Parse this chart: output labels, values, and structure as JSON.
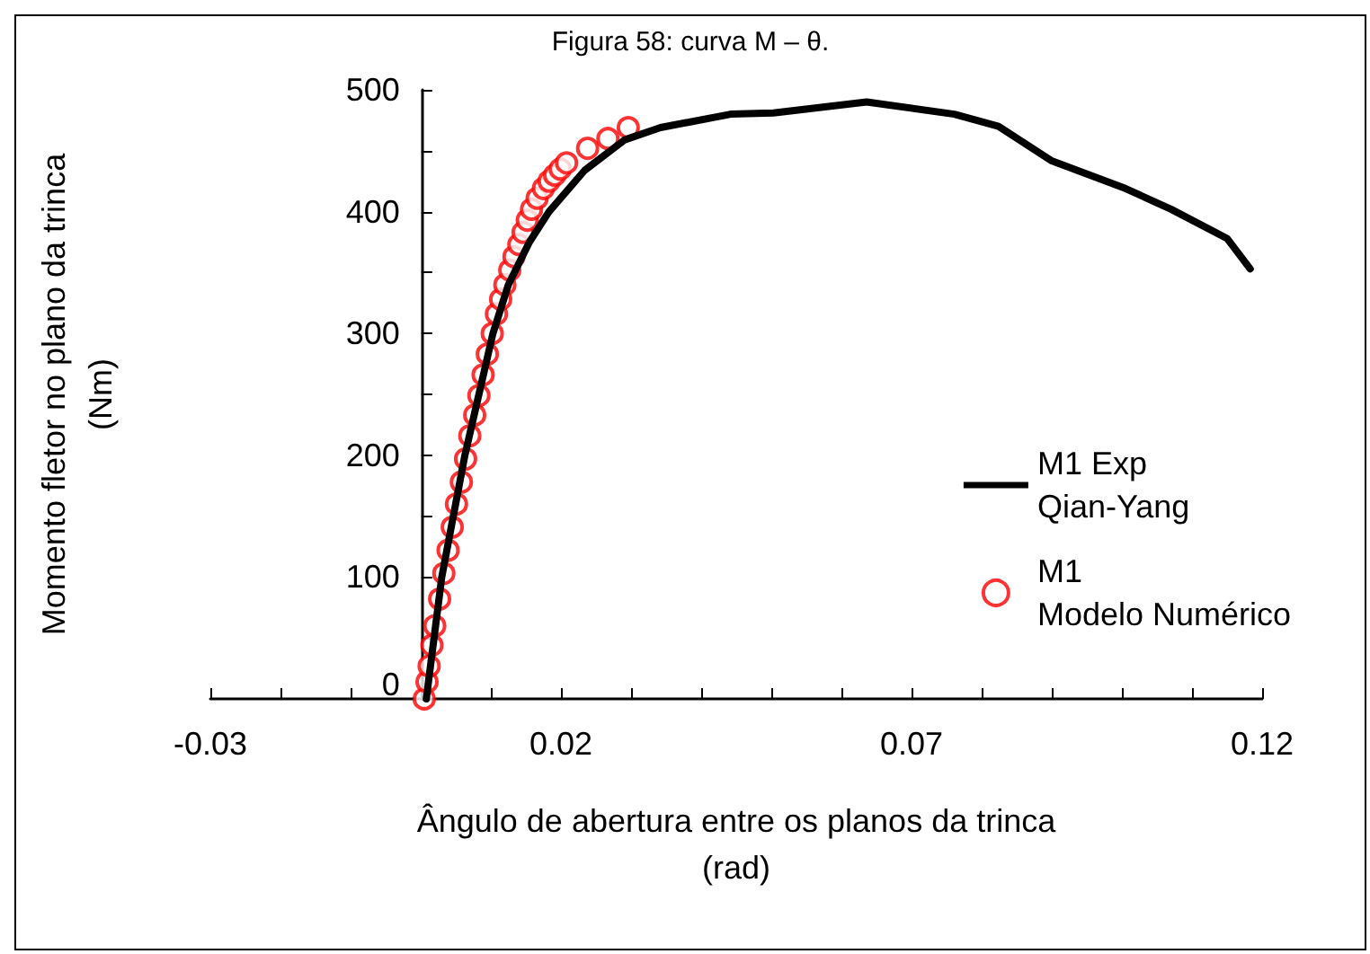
{
  "chart_data": {
    "type": "line",
    "title": "Figura 58: curva M – θ.",
    "xlabel": "Ângulo de abertura entre os planos da trinca\n(rad)",
    "ylabel": "Momento fletor no plano da trinca\n(Nm)",
    "xlim": [
      -0.03,
      0.12
    ],
    "xticks": [
      -0.03,
      {
        "value": -0.02,
        "label": null
      },
      {
        "value": -0.01,
        "label": null
      },
      {
        "value": 0,
        "label": null
      },
      {
        "value": 0.01,
        "label": null
      },
      0.02,
      {
        "value": 0.03,
        "label": null
      },
      {
        "value": 0.04,
        "label": null
      },
      {
        "value": 0.05,
        "label": null
      },
      {
        "value": 0.06,
        "label": null
      },
      0.07,
      {
        "value": 0.08,
        "label": null
      },
      {
        "value": 0.09,
        "label": null
      },
      {
        "value": 0.1,
        "label": null
      },
      {
        "value": 0.11,
        "label": null
      },
      0.12
    ],
    "ylim": [
      0,
      500
    ],
    "yticks": [
      0,
      {
        "value": 50,
        "label": null
      },
      100,
      {
        "value": 150,
        "label": null
      },
      200,
      {
        "value": 250,
        "label": null
      },
      300,
      {
        "value": 350,
        "label": null
      },
      400,
      {
        "value": 450,
        "label": null
      },
      500
    ],
    "grid": false,
    "legend": "right",
    "series": [
      {
        "name": "M1 Exp\nQian-Yang",
        "color": "#000000",
        "marker": "none",
        "line_style": "solid",
        "x": [
          0.0008,
          0.003,
          0.0063,
          0.0103,
          0.0125,
          0.0155,
          0.0183,
          0.0234,
          0.0291,
          0.0342,
          0.0442,
          0.0503,
          0.0636,
          0.0761,
          0.0824,
          0.0899,
          0.1005,
          0.107,
          0.115,
          0.1183
        ],
        "values": [
          0,
          100,
          200,
          300,
          340,
          375,
          400,
          434,
          459,
          469,
          480,
          481,
          490,
          480,
          470,
          442,
          419,
          402,
          378,
          353
        ]
      },
      {
        "name": "M1\nModelo Numérico",
        "type": "scatter",
        "color": "#ff0000",
        "marker": "circle",
        "x": [
          0.0005,
          0.0009,
          0.0012,
          0.0016,
          0.002,
          0.0027,
          0.0033,
          0.0039,
          0.0045,
          0.0051,
          0.0058,
          0.0064,
          0.007,
          0.0077,
          0.0083,
          0.0089,
          0.0095,
          0.0102,
          0.0108,
          0.0114,
          0.012,
          0.0127,
          0.0133,
          0.014,
          0.0146,
          0.0152,
          0.0158,
          0.0166,
          0.0175,
          0.0183,
          0.0191,
          0.0199,
          0.0208,
          0.0238,
          0.0267,
          0.0296
        ],
        "values": [
          0,
          14,
          27,
          44,
          60,
          82,
          103,
          122,
          141,
          160,
          178,
          197,
          216,
          233,
          249,
          266,
          283,
          300,
          316,
          328,
          340,
          352,
          363,
          373,
          383,
          393,
          402,
          411,
          419,
          425,
          430,
          435,
          440,
          452,
          460,
          469
        ]
      }
    ]
  }
}
